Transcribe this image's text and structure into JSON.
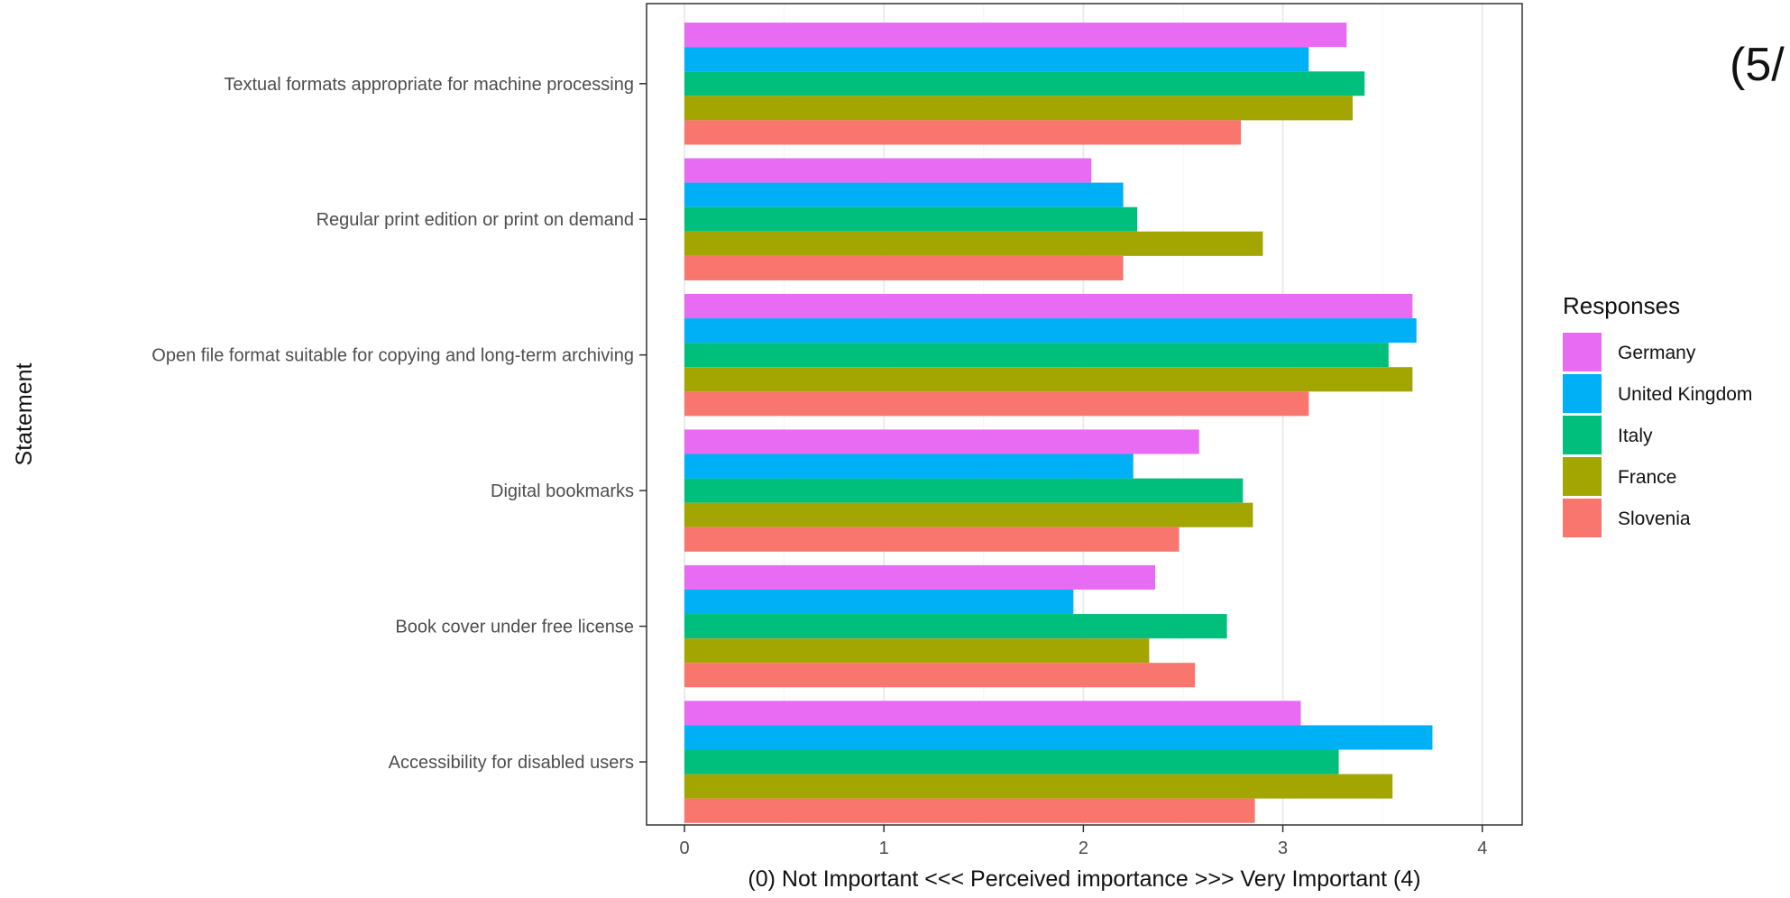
{
  "corner_label": "(5/",
  "colors": {
    "Germany": "#E76BF3",
    "United Kingdom": "#00B0F6",
    "Italy": "#00BF7D",
    "France": "#A3A500",
    "Slovenia": "#F8766D",
    "panel_border": "#333333",
    "grid": "#EBEBEB",
    "axis_text": "#4D4D4D",
    "title_text": "#111111"
  },
  "chart_data": {
    "type": "bar",
    "orientation": "horizontal",
    "categories": [
      "Textual formats appropriate for machine processing",
      "Regular print edition or print on demand",
      "Open file format suitable for copying and long-term archiving",
      "Digital bookmarks",
      "Book cover under free license",
      "Accessibility for disabled users"
    ],
    "series": [
      {
        "name": "Germany",
        "values": [
          3.32,
          2.04,
          3.65,
          2.58,
          2.36,
          3.09
        ]
      },
      {
        "name": "United Kingdom",
        "values": [
          3.13,
          2.2,
          3.67,
          2.25,
          1.95,
          3.75
        ]
      },
      {
        "name": "Italy",
        "values": [
          3.41,
          2.27,
          3.53,
          2.8,
          2.72,
          3.28
        ]
      },
      {
        "name": "France",
        "values": [
          3.35,
          2.9,
          3.65,
          2.85,
          2.33,
          3.55
        ]
      },
      {
        "name": "Slovenia",
        "values": [
          2.79,
          2.2,
          3.13,
          2.48,
          2.56,
          2.86
        ]
      }
    ],
    "xlabel": "(0) Not Important <<< Perceived importance >>> Very Important (4)",
    "ylabel": "Statement",
    "xlim": [
      -0.19,
      4.2
    ],
    "xticks": [
      0,
      1,
      2,
      3,
      4
    ],
    "grid": true,
    "legend": {
      "title": "Responses",
      "position": "right",
      "entries": [
        "Germany",
        "United Kingdom",
        "Italy",
        "France",
        "Slovenia"
      ]
    }
  }
}
